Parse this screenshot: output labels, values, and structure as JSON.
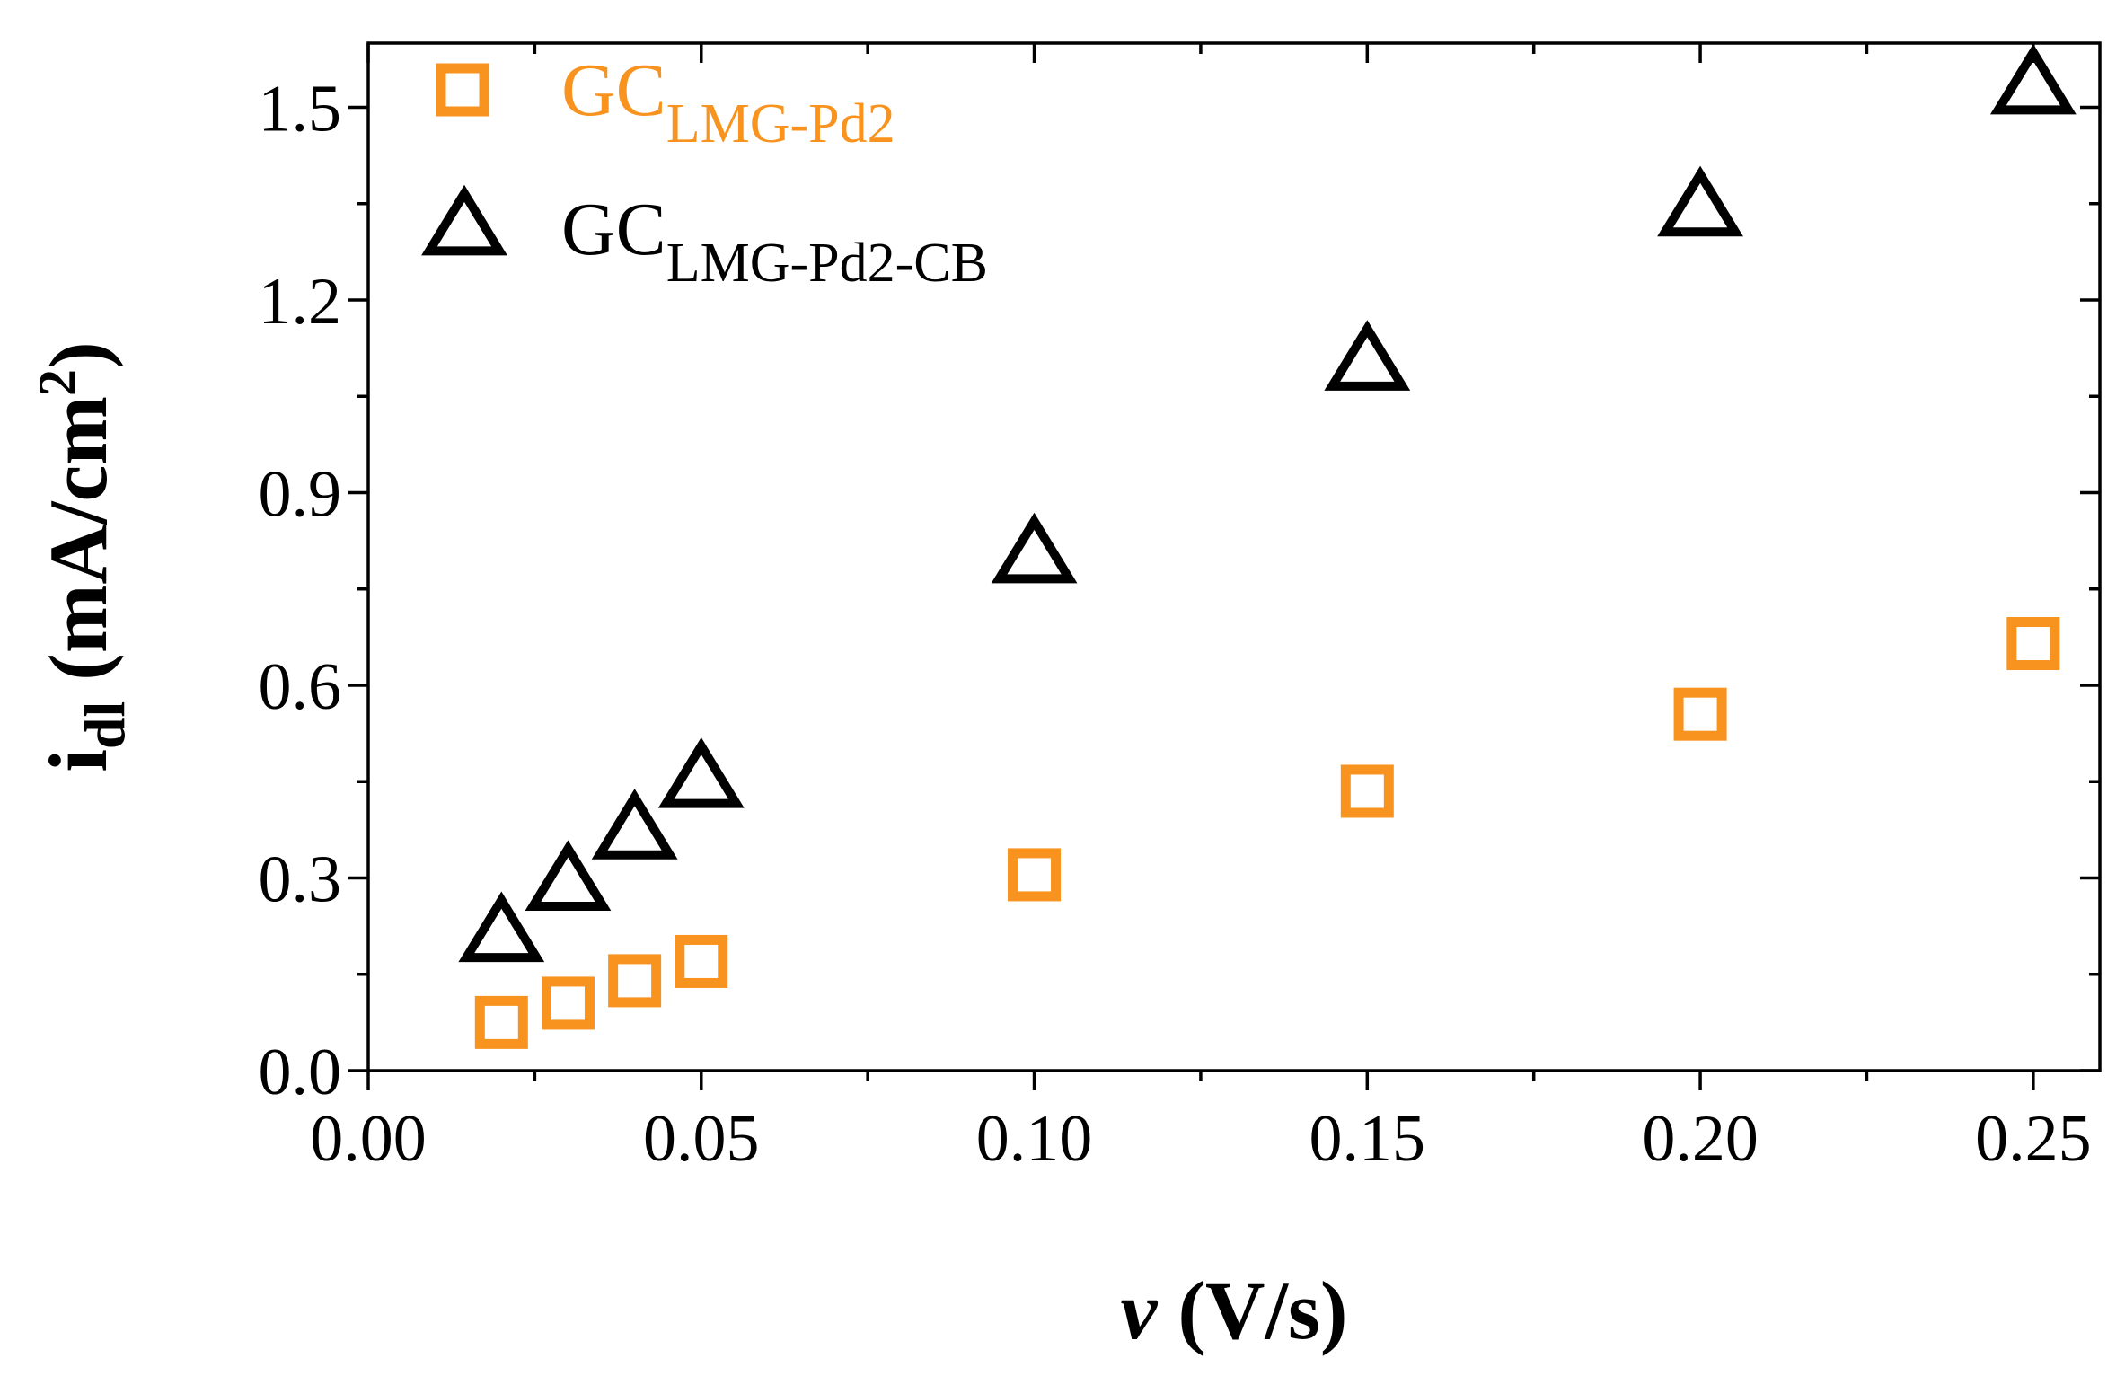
{
  "colors": {
    "series1": "#f7931e",
    "series2": "#000000",
    "axis": "#000000",
    "background": "#ffffff"
  },
  "chart_data": {
    "type": "scatter",
    "title": "",
    "xlabel": {
      "symbol": "v",
      "unit": " (V/s)"
    },
    "ylabel": {
      "main": "i",
      "sub": "dl",
      "unit_before": " (mA/cm",
      "sup": "2",
      "unit_after": ")"
    },
    "xlim": [
      0,
      0.26
    ],
    "ylim": [
      0,
      1.6
    ],
    "x_ticks": [
      {
        "value": 0.0,
        "label": "0.00"
      },
      {
        "value": 0.05,
        "label": "0.05"
      },
      {
        "value": 0.1,
        "label": "0.10"
      },
      {
        "value": 0.15,
        "label": "0.15"
      },
      {
        "value": 0.2,
        "label": "0.20"
      },
      {
        "value": 0.25,
        "label": "0.25"
      }
    ],
    "y_ticks": [
      {
        "value": 0.0,
        "label": "0.0"
      },
      {
        "value": 0.3,
        "label": "0.3"
      },
      {
        "value": 0.6,
        "label": "0.6"
      },
      {
        "value": 0.9,
        "label": "0.9"
      },
      {
        "value": 1.2,
        "label": "1.2"
      },
      {
        "value": 1.5,
        "label": "1.5"
      }
    ],
    "grid": false,
    "legend_position": "top-left",
    "series": [
      {
        "name_main": "GC",
        "name_sub": "LMG-Pd2",
        "marker": "square",
        "color": "#f7931e",
        "x": [
          0.02,
          0.03,
          0.04,
          0.05,
          0.1,
          0.15,
          0.2,
          0.25
        ],
        "y": [
          0.075,
          0.105,
          0.14,
          0.17,
          0.305,
          0.435,
          0.555,
          0.665
        ]
      },
      {
        "name_main": "GC",
        "name_sub": "LMG-Pd2-CB",
        "marker": "triangle",
        "color": "#000000",
        "x": [
          0.02,
          0.03,
          0.04,
          0.05,
          0.1,
          0.15,
          0.2,
          0.25
        ],
        "y": [
          0.21,
          0.29,
          0.37,
          0.45,
          0.8,
          1.1,
          1.34,
          1.53
        ]
      }
    ]
  }
}
